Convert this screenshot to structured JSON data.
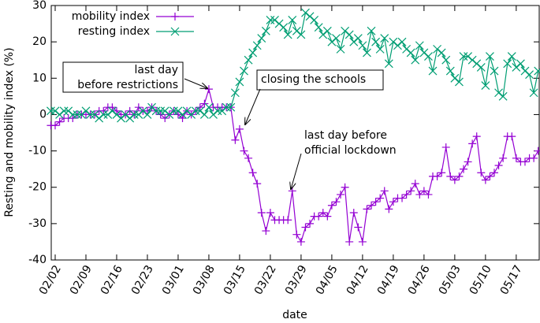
{
  "chart_data": {
    "type": "line",
    "ylabel": "Resting and mobility index (%)",
    "xlabel": "date",
    "categories": [
      null,
      "02/02",
      null,
      null,
      null,
      null,
      null,
      null,
      "02/09",
      null,
      null,
      null,
      null,
      null,
      null,
      "02/16",
      null,
      null,
      null,
      null,
      null,
      null,
      "02/23",
      null,
      null,
      null,
      null,
      null,
      null,
      "03/01",
      null,
      null,
      null,
      null,
      null,
      null,
      "03/08",
      null,
      null,
      null,
      null,
      null,
      null,
      "03/15",
      null,
      null,
      null,
      null,
      null,
      null,
      "03/22",
      null,
      null,
      null,
      null,
      null,
      null,
      "03/29",
      null,
      null,
      null,
      null,
      null,
      null,
      "04/05",
      null,
      null,
      null,
      null,
      null,
      null,
      "04/12",
      null,
      null,
      null,
      null,
      null,
      null,
      "04/19",
      null,
      null,
      null,
      null,
      null,
      null,
      "04/26",
      null,
      null,
      null,
      null,
      null,
      null,
      "05/03",
      null,
      null,
      null,
      null,
      null,
      null,
      "05/10",
      null,
      null,
      null,
      null,
      null,
      null,
      "05/17",
      null,
      null,
      null,
      null,
      null
    ],
    "series": [
      {
        "name": "mobility index",
        "color": "#9400d3",
        "marker": "plus",
        "values": [
          -3,
          -3,
          -2,
          -1,
          -1,
          -1,
          0,
          0,
          0,
          0,
          0,
          1,
          1,
          2,
          2,
          1,
          0,
          0,
          1,
          0,
          2,
          1,
          1,
          2,
          1,
          0,
          -1,
          0,
          1,
          0,
          -1,
          1,
          0,
          1,
          2,
          3,
          7,
          2,
          2,
          2,
          2,
          2,
          -7,
          -4,
          -10,
          -12,
          -16,
          -19,
          -27,
          -32,
          -27,
          -29,
          -29,
          -29,
          -29,
          -21,
          -33,
          -35,
          -31,
          -30,
          -28,
          -28,
          -27,
          -28,
          -25,
          -24,
          -22,
          -20,
          -35,
          -27,
          -31,
          -35,
          -26,
          -25,
          -24,
          -23,
          -21,
          -26,
          -24,
          -23,
          -23,
          -22,
          -21,
          -19,
          -22,
          -21,
          -22,
          -17,
          -17,
          -16,
          -9,
          -17,
          -18,
          -17,
          -15,
          -13,
          -8,
          -6,
          -16,
          -18,
          -17,
          -16,
          -14,
          -12,
          -6,
          -6,
          -12,
          -13,
          -13,
          -12,
          -12,
          -10
        ]
      },
      {
        "name": "resting index",
        "color": "#009e73",
        "marker": "cross",
        "values": [
          1,
          1,
          0,
          1,
          1,
          0,
          0,
          0,
          1,
          0,
          0,
          -1,
          0,
          0,
          1,
          0,
          -1,
          0,
          -1,
          0,
          0,
          1,
          0,
          2,
          1,
          1,
          1,
          0,
          1,
          1,
          0,
          1,
          0,
          1,
          1,
          0,
          2,
          0,
          1,
          1,
          2,
          2,
          6,
          9,
          12,
          15,
          17,
          19,
          21,
          23,
          26,
          26,
          25,
          24,
          22,
          26,
          23,
          22,
          28,
          27,
          26,
          24,
          22,
          23,
          20,
          21,
          18,
          23,
          22,
          20,
          21,
          19,
          17,
          23,
          20,
          18,
          21,
          14,
          20,
          19,
          20,
          18,
          17,
          15,
          19,
          17,
          16,
          12,
          18,
          17,
          15,
          12,
          10,
          9,
          16,
          16,
          15,
          14,
          13,
          8,
          16,
          12,
          6,
          5,
          14,
          16,
          13,
          14,
          12,
          11,
          6,
          12
        ]
      }
    ],
    "ylim": [
      -40,
      30
    ],
    "yticks": [
      -40,
      -30,
      -20,
      -10,
      0,
      10,
      20,
      30
    ],
    "legend": "top left",
    "annotations": [
      {
        "text": [
          "last day",
          "before restrictions"
        ],
        "boxed": true
      },
      {
        "text": [
          "closing the schools"
        ],
        "boxed": true
      },
      {
        "text": [
          "last day before",
          "official lockdown"
        ],
        "boxed": false
      }
    ]
  }
}
